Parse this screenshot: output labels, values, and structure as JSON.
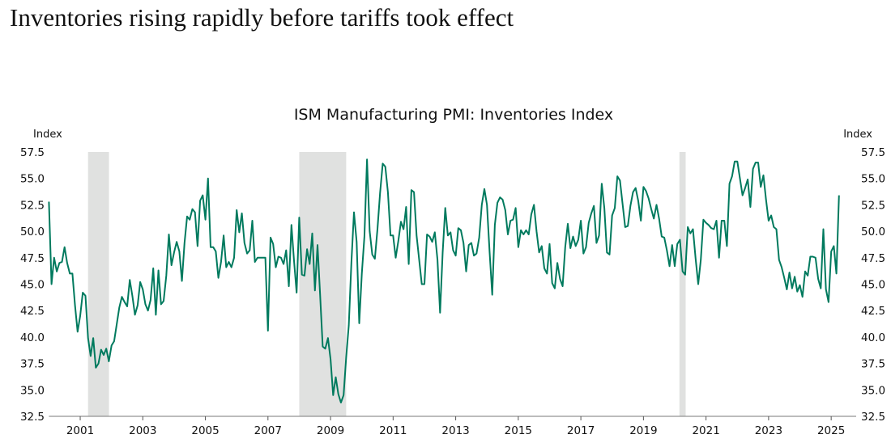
{
  "headline": "Inventories rising rapidly before tariffs took effect",
  "chart_data": {
    "type": "line",
    "title": "ISM Manufacturing PMI: Inventories Index",
    "xlabel": "",
    "ylabel_left": "Index",
    "ylabel_right": "Index",
    "ylim": [
      32.5,
      57.5
    ],
    "yticks": [
      "32.5",
      "35.0",
      "37.5",
      "40.0",
      "42.5",
      "45.0",
      "47.5",
      "50.0",
      "52.5",
      "55.0",
      "57.5"
    ],
    "xlim": [
      2000.0,
      2025.3
    ],
    "xticks": [
      "2001",
      "2003",
      "2005",
      "2007",
      "2009",
      "2011",
      "2013",
      "2015",
      "2017",
      "2019",
      "2021",
      "2023",
      "2025"
    ],
    "grid": false,
    "legend": "none",
    "line_color": "#007a5e",
    "recession_color": "#e0e1e0",
    "recessions": [
      [
        2001.25,
        2001.92
      ],
      [
        2008.0,
        2009.5
      ],
      [
        2020.15,
        2020.35
      ]
    ],
    "series": [
      {
        "name": "Inventories Index",
        "start": "2000-01",
        "frequency": "monthly",
        "values": [
          52.8,
          45.0,
          47.5,
          46.2,
          47.0,
          47.1,
          48.5,
          47.0,
          46.0,
          46.0,
          43.0,
          40.5,
          42.0,
          44.2,
          43.9,
          39.9,
          38.2,
          39.9,
          37.1,
          37.5,
          38.8,
          38.3,
          38.9,
          37.7,
          39.2,
          39.6,
          41.2,
          42.8,
          43.8,
          43.3,
          42.9,
          45.4,
          43.9,
          42.1,
          43.0,
          45.2,
          44.5,
          43.1,
          42.5,
          43.5,
          46.5,
          42.1,
          46.3,
          43.1,
          43.4,
          45.8,
          49.7,
          46.8,
          48.0,
          49.0,
          48.1,
          45.3,
          48.9,
          51.4,
          51.1,
          52.1,
          51.8,
          48.6,
          52.9,
          53.4,
          51.1,
          55.0,
          48.5,
          48.5,
          48.1,
          45.6,
          47.1,
          49.6,
          46.6,
          47.1,
          46.6,
          47.5,
          52.0,
          49.9,
          51.7,
          48.9,
          47.9,
          48.2,
          51.0,
          47.1,
          47.5,
          47.5,
          47.5,
          47.5,
          40.6,
          49.4,
          48.8,
          46.6,
          47.6,
          47.5,
          46.9,
          48.2,
          44.8,
          50.6,
          47.2,
          44.2,
          51.3,
          45.9,
          45.8,
          48.3,
          46.9,
          49.8,
          44.4,
          48.7,
          44.0,
          39.1,
          38.9,
          39.9,
          37.9,
          34.5,
          36.2,
          34.6,
          33.8,
          34.5,
          38.1,
          41.1,
          47.0,
          51.8,
          49.0,
          41.3,
          46.0,
          49.5,
          56.8,
          50.0,
          47.8,
          47.4,
          50.2,
          53.6,
          56.4,
          56.1,
          53.7,
          49.6,
          49.6,
          47.5,
          49.1,
          50.9,
          50.2,
          52.3,
          46.9,
          53.9,
          53.7,
          49.6,
          47.3,
          45.0,
          45.0,
          49.7,
          49.5,
          49.0,
          49.9,
          47.3,
          42.3,
          48.0,
          52.2,
          49.6,
          49.9,
          48.2,
          47.7,
          50.3,
          50.1,
          48.9,
          46.2,
          48.7,
          48.9,
          47.7,
          47.9,
          49.4,
          52.5,
          54.0,
          52.5,
          48.1,
          44.0,
          50.6,
          52.7,
          53.2,
          53.0,
          52.0,
          49.7,
          51.0,
          51.1,
          52.2,
          48.5,
          50.1,
          49.7,
          50.1,
          49.7,
          51.6,
          52.5,
          50.0,
          48.0,
          48.6,
          46.5,
          46.0,
          48.8,
          45.1,
          44.6,
          47.0,
          45.5,
          44.8,
          48.5,
          50.7,
          48.4,
          49.5,
          48.6,
          49.2,
          51.0,
          47.9,
          48.5,
          50.8,
          51.7,
          52.4,
          48.9,
          49.6,
          54.5,
          52.2,
          48.0,
          47.8,
          51.5,
          52.2,
          55.2,
          54.8,
          52.6,
          50.4,
          50.5,
          52.4,
          53.7,
          54.1,
          52.9,
          51.0,
          54.2,
          53.8,
          53.1,
          52.1,
          51.2,
          52.5,
          51.2,
          49.5,
          49.4,
          48.2,
          46.7,
          48.7,
          46.7,
          48.8,
          49.2,
          46.2,
          45.9,
          50.4,
          49.8,
          50.2,
          47.4,
          45.0,
          47.3,
          51.1,
          50.8,
          50.6,
          50.3,
          50.2,
          51.0,
          47.5,
          51.0,
          51.0,
          48.6,
          54.5,
          55.2,
          56.6,
          56.6,
          55.0,
          53.4,
          54.1,
          54.9,
          52.3,
          55.9,
          56.5,
          56.5,
          54.2,
          55.3,
          53.0,
          51.0,
          51.5,
          50.4,
          50.2,
          47.3,
          46.6,
          45.6,
          44.5,
          46.1,
          44.6,
          45.7,
          44.3,
          44.9,
          43.8,
          46.2,
          45.8,
          47.6,
          47.6,
          47.5,
          45.5,
          44.6,
          50.2,
          44.5,
          43.3,
          48.1,
          48.6,
          46.0,
          53.4
        ]
      }
    ]
  }
}
